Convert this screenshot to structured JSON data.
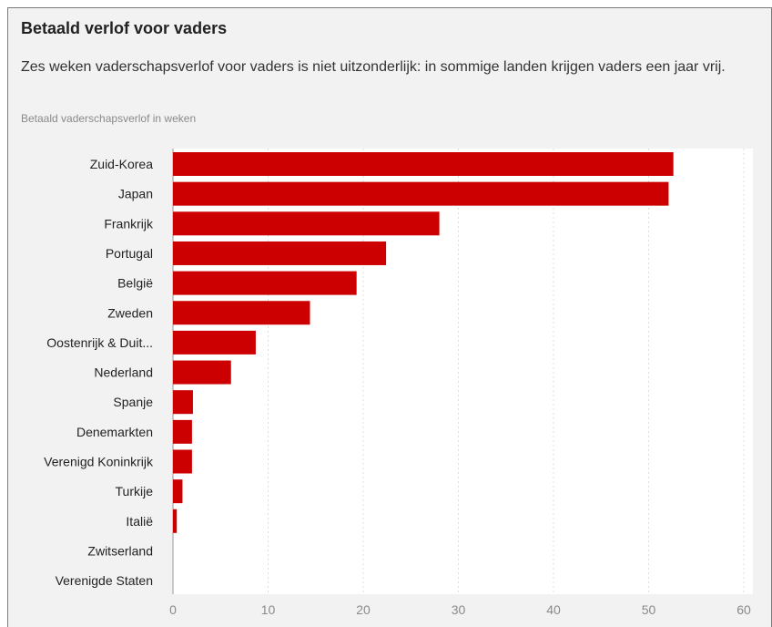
{
  "header": {
    "title": "Betaald verlof voor vaders",
    "subtitle": "Zes weken vaderschapsverlof voor vaders is niet uitzonderlijk: in sommige landen krijgen vaders een jaar vrij.",
    "axis_title": "Betaald vaderschapsverlof in weken"
  },
  "chart_data": {
    "type": "bar",
    "orientation": "horizontal",
    "categories": [
      "Zuid-Korea",
      "Japan",
      "Frankrijk",
      "Portugal",
      "België",
      "Zweden",
      "Oostenrijk & Duit...",
      "Nederland",
      "Spanje",
      "Denemarkten",
      "Verenigd Koninkrijk",
      "Turkije",
      "Italië",
      "Zwitserland",
      "Verenigde Staten"
    ],
    "values": [
      52.6,
      52.1,
      28.0,
      22.4,
      19.3,
      14.4,
      8.7,
      6.1,
      2.1,
      2.0,
      2.0,
      1.0,
      0.4,
      0,
      0
    ],
    "xlim": [
      0,
      60
    ],
    "xticks": [
      "0",
      "10",
      "20",
      "30",
      "40",
      "50",
      "60"
    ],
    "grid": true,
    "colors": {
      "bar": "#cc0000",
      "background": "#f2f2f2",
      "plot_background": "#ffffff",
      "grid": "#dddddd"
    }
  }
}
